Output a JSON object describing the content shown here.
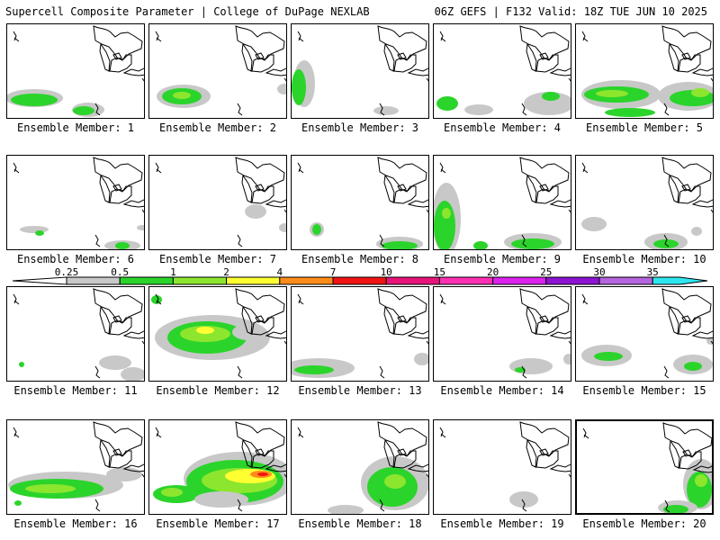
{
  "header": {
    "left_title": "Supercell Composite Parameter | College of DuPage NEXLAB",
    "right_title": "06Z GEFS | F132 Valid: 18Z TUE JUN 10 2025"
  },
  "panel_label_prefix": "Ensemble Member:",
  "members": [
    1,
    2,
    3,
    4,
    5,
    6,
    7,
    8,
    9,
    10,
    11,
    12,
    13,
    14,
    15,
    16,
    17,
    18,
    19,
    20
  ],
  "legend": {
    "ticks": [
      "0.25",
      "0.5",
      "1",
      "2",
      "4",
      "7",
      "10",
      "15",
      "20",
      "25",
      "30",
      "35"
    ],
    "colors": [
      "#c8c8c8",
      "#2bd42b",
      "#8ce62e",
      "#ffff32",
      "#ff8c1a",
      "#f01414",
      "#e8147a",
      "#ff2fb4",
      "#dd22ee",
      "#8c14d2",
      "#b464dc",
      "#2ee6f0"
    ]
  },
  "colors": {
    "gray": "#c8c8c8",
    "green": "#2bd42b",
    "lightgreen": "#8ce62e",
    "yellow": "#ffff32",
    "orange": "#ff8c1a",
    "red": "#f01414"
  }
}
